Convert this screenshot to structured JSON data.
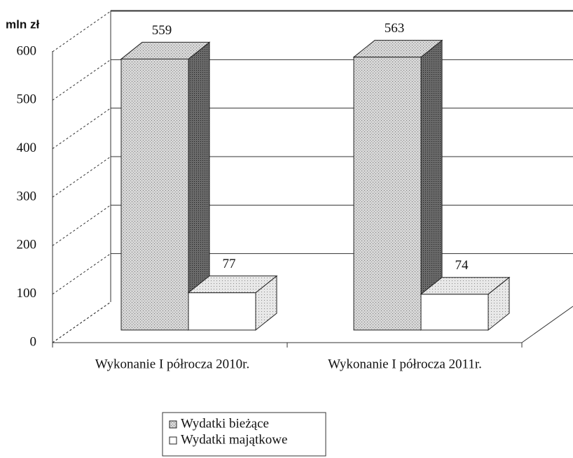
{
  "chart_data": {
    "type": "bar3d",
    "y_axis_label": "mln zł",
    "categories": [
      "Wykonanie I półrocza 2010r.",
      "Wykonanie I półrocza 2011r."
    ],
    "series": [
      {
        "name": "Wydatki bieżące",
        "color": "#c4c4c4",
        "values": [
          559,
          563
        ]
      },
      {
        "name": "Wydatki majątkowe",
        "color": "#ffffff",
        "values": [
          77,
          74
        ]
      }
    ],
    "ylim": [
      0,
      600
    ],
    "yticks": [
      0,
      100,
      200,
      300,
      400,
      500,
      600
    ],
    "grid": true
  }
}
